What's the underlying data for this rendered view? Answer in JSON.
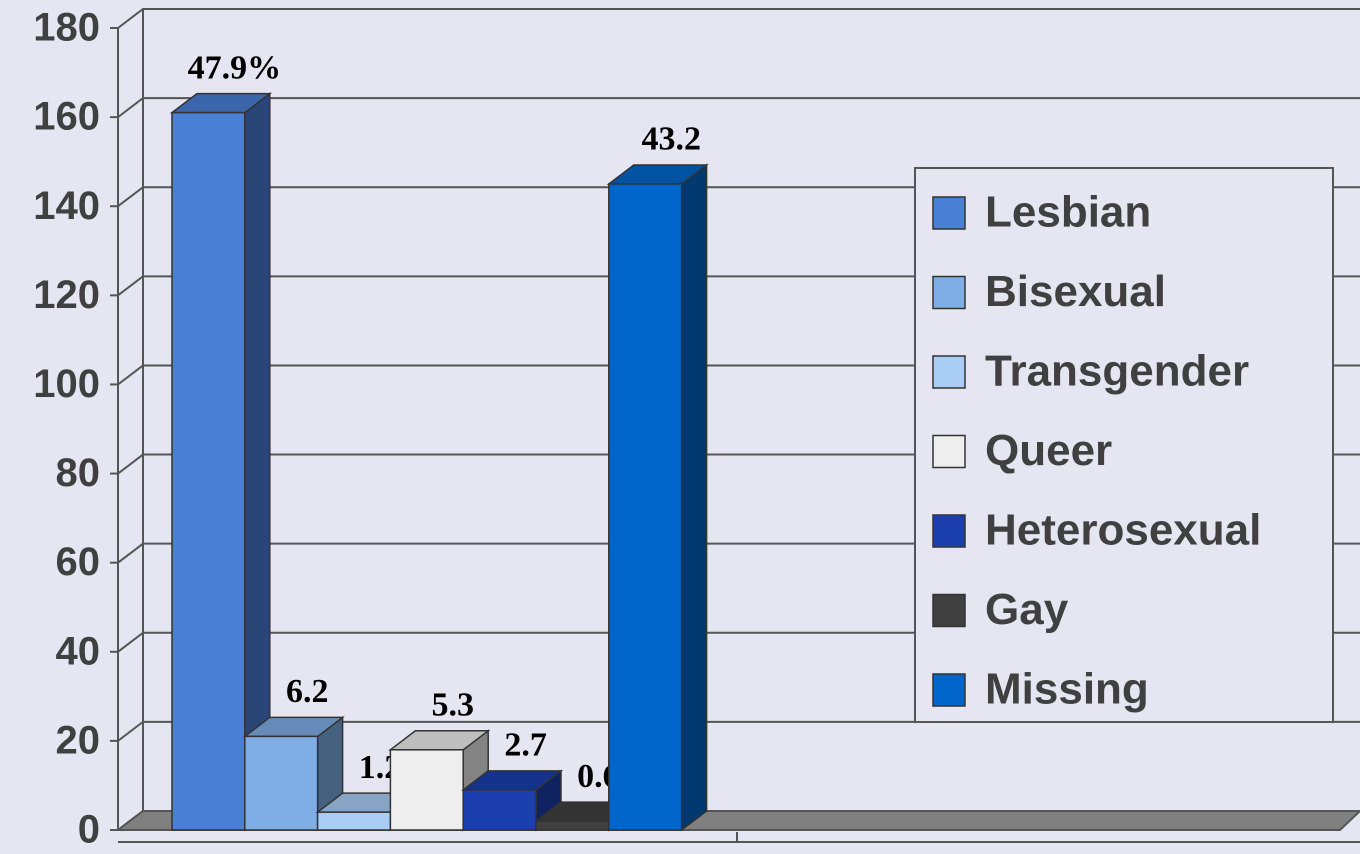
{
  "chart_data": {
    "type": "bar3d",
    "series": [
      {
        "name": "Lesbian",
        "color": "#4a7fd6",
        "values": [
          161
        ]
      },
      {
        "name": "Bisexual",
        "color": "#7faee6",
        "values": [
          21
        ]
      },
      {
        "name": "Transgender",
        "color": "#a9cdf5",
        "values": [
          4
        ]
      },
      {
        "name": "Queer",
        "color": "#eeeeee",
        "values": [
          18
        ]
      },
      {
        "name": "Heterosexual",
        "color": "#1c3fb0",
        "values": [
          9
        ]
      },
      {
        "name": "Gay",
        "color": "#404040",
        "values": [
          2
        ]
      },
      {
        "name": "Missing",
        "color": "#0066cc",
        "values": [
          145
        ]
      }
    ],
    "annotations": [
      "47.9%",
      "6.2",
      "1.2",
      "5.3",
      "2.7",
      "0.6",
      "43.2"
    ],
    "ylim": [
      0,
      180
    ],
    "yticks": [
      0,
      20,
      40,
      60,
      80,
      100,
      120,
      140,
      160,
      180
    ],
    "grid": true,
    "legend": "right"
  }
}
